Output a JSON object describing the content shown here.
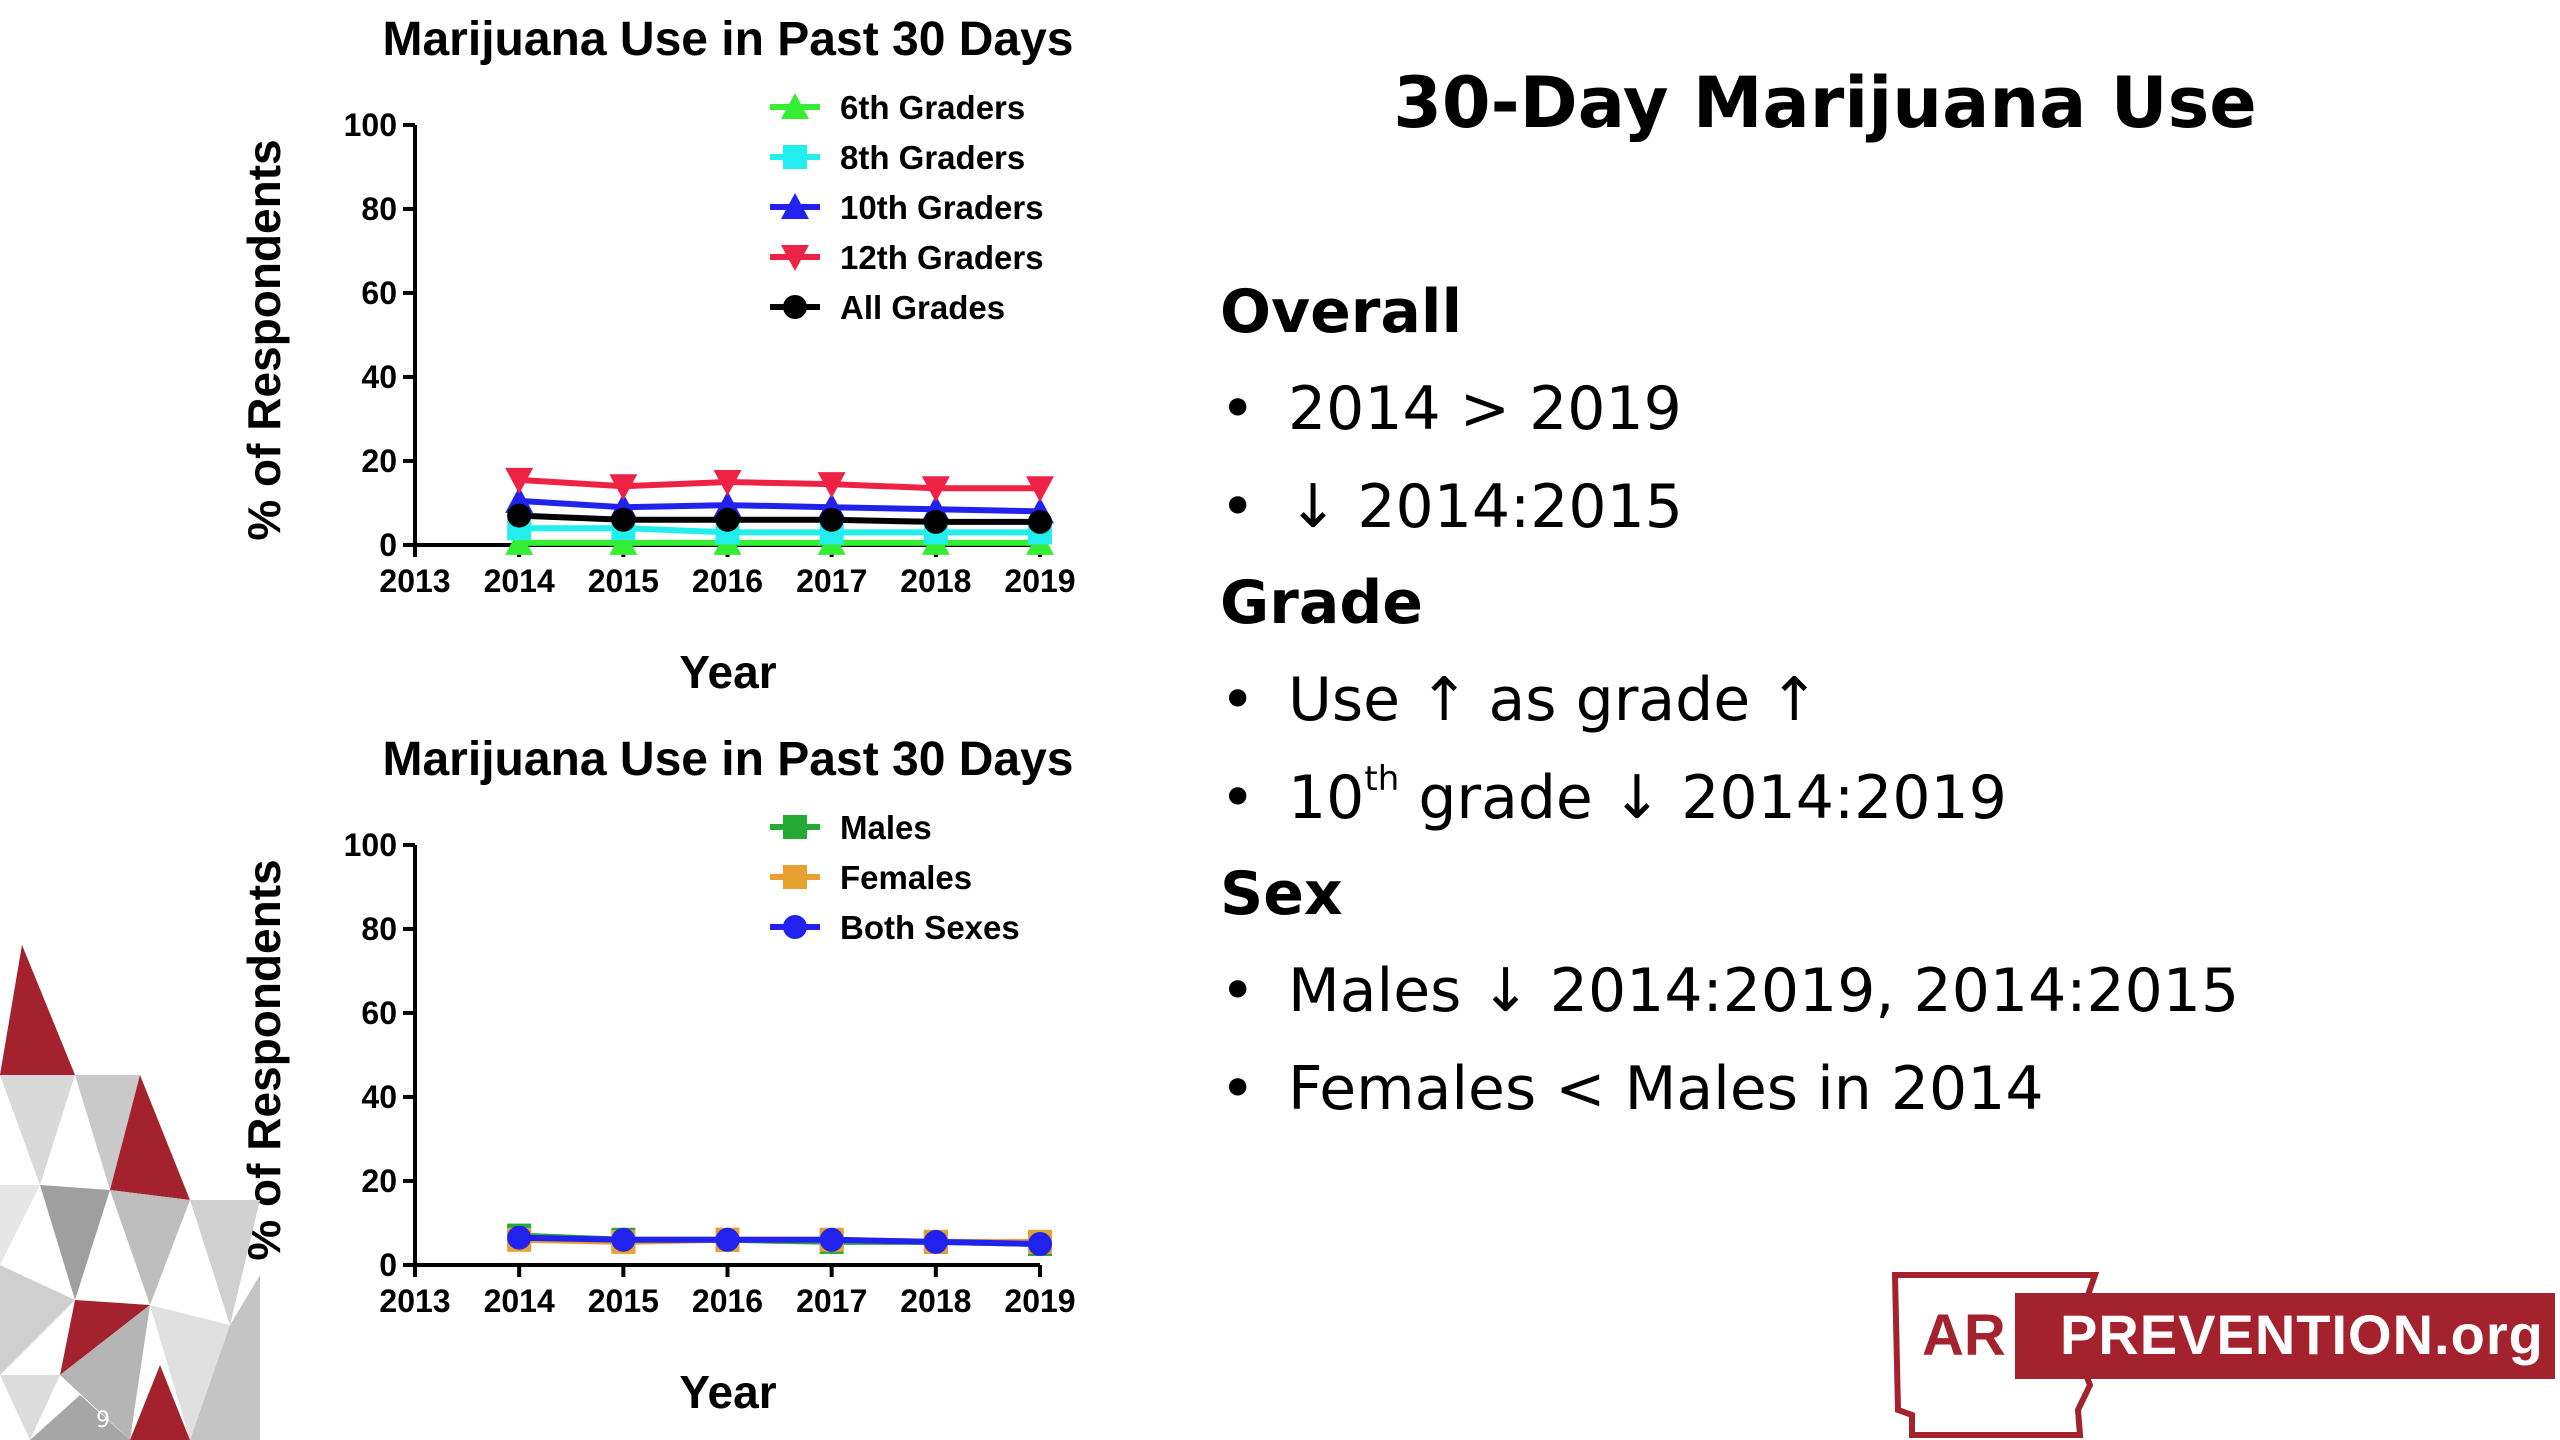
{
  "slide": {
    "title": "30-Day Marijuana Use",
    "page_number": "9",
    "sections": [
      {
        "heading": "Overall",
        "bullets": [
          {
            "text": "2014 > 2019"
          },
          {
            "text": "↓ 2014:2015"
          }
        ]
      },
      {
        "heading": "Grade",
        "bullets": [
          {
            "text": "Use ↑ as grade ↑"
          },
          {
            "pre": "10",
            "sup": "th",
            "post": " grade ↓ 2014:2019"
          }
        ]
      },
      {
        "heading": "Sex",
        "bullets": [
          {
            "text": "Males ↓ 2014:2019, 2014:2015"
          },
          {
            "text": "Females < Males in 2014"
          }
        ]
      }
    ],
    "bullet_char": "•"
  },
  "logo": {
    "ar": "AR",
    "text": "PREVENTION.org",
    "color": "#a4222d"
  },
  "chart_data": [
    {
      "type": "line",
      "title": "Marijuana Use in Past 30 Days",
      "xlabel": "Year",
      "ylabel": "% of Respondents",
      "xlim": [
        2013,
        2019
      ],
      "ylim": [
        0,
        100
      ],
      "x_ticks": [
        2013,
        2014,
        2015,
        2016,
        2017,
        2018,
        2019
      ],
      "y_ticks": [
        0,
        20,
        40,
        60,
        80,
        100
      ],
      "legend_position": "top-right",
      "grid": false,
      "series": [
        {
          "name": "6th Graders",
          "color": "#33ee33",
          "marker": "triangle-up",
          "x": [
            2014,
            2015,
            2016,
            2017,
            2018,
            2019
          ],
          "values": [
            0.5,
            0.5,
            0.5,
            0.5,
            0.5,
            0.5
          ]
        },
        {
          "name": "8th Graders",
          "color": "#22eeee",
          "marker": "square",
          "x": [
            2014,
            2015,
            2016,
            2017,
            2018,
            2019
          ],
          "values": [
            4,
            4,
            3,
            3,
            3,
            3
          ]
        },
        {
          "name": "10th Graders",
          "color": "#2222ee",
          "marker": "triangle-up",
          "x": [
            2014,
            2015,
            2016,
            2017,
            2018,
            2019
          ],
          "values": [
            10.5,
            9,
            9.5,
            9,
            8.5,
            8
          ]
        },
        {
          "name": "12th Graders",
          "color": "#ee2244",
          "marker": "triangle-down",
          "x": [
            2014,
            2015,
            2016,
            2017,
            2018,
            2019
          ],
          "values": [
            15.5,
            14,
            15,
            14.5,
            13.5,
            13.5
          ]
        },
        {
          "name": "All Grades",
          "color": "#000000",
          "marker": "circle",
          "x": [
            2014,
            2015,
            2016,
            2017,
            2018,
            2019
          ],
          "values": [
            7,
            6,
            6,
            6,
            5.5,
            5.5
          ]
        }
      ]
    },
    {
      "type": "line",
      "title": "Marijuana Use in Past 30 Days",
      "xlabel": "Year",
      "ylabel": "% of Respondents",
      "xlim": [
        2013,
        2019
      ],
      "ylim": [
        0,
        100
      ],
      "x_ticks": [
        2013,
        2014,
        2015,
        2016,
        2017,
        2018,
        2019
      ],
      "y_ticks": [
        0,
        20,
        40,
        60,
        80,
        100
      ],
      "legend_position": "top-right",
      "grid": false,
      "series": [
        {
          "name": "Males",
          "color": "#22aa33",
          "marker": "square",
          "x": [
            2014,
            2015,
            2016,
            2017,
            2018,
            2019
          ],
          "values": [
            7,
            6,
            6,
            5.5,
            5.5,
            5
          ]
        },
        {
          "name": "Females",
          "color": "#e8a030",
          "marker": "square",
          "x": [
            2014,
            2015,
            2016,
            2017,
            2018,
            2019
          ],
          "values": [
            6,
            5.5,
            6,
            6,
            5.5,
            5.5
          ]
        },
        {
          "name": "Both Sexes",
          "color": "#2222ee",
          "marker": "circle",
          "x": [
            2014,
            2015,
            2016,
            2017,
            2018,
            2019
          ],
          "values": [
            6.5,
            6,
            6,
            6,
            5.5,
            5
          ]
        }
      ]
    }
  ]
}
